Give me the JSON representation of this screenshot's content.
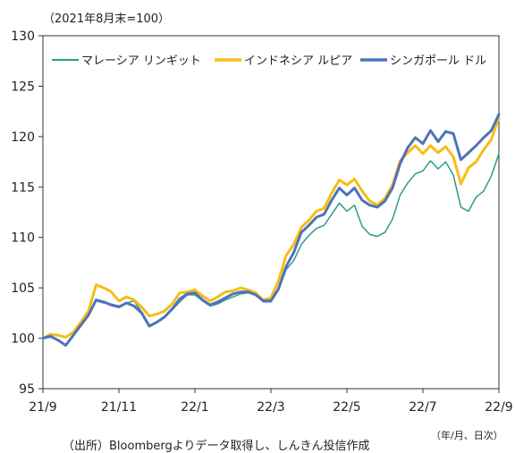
{
  "chart_data": {
    "type": "line",
    "unit_note": "（2021年8月末=100）",
    "x_unit": "（年/月、日次）",
    "source": "（出所）Bloombergよりデータ取得し、しんきん投信作成",
    "ylim": [
      95,
      130
    ],
    "y_ticks": [
      95,
      100,
      105,
      110,
      115,
      120,
      125,
      130
    ],
    "x_tick_labels": [
      "21/9",
      "21/11",
      "22/1",
      "22/3",
      "22/5",
      "22/7",
      "22/9"
    ],
    "x_range": [
      0,
      12
    ],
    "x_tick_positions": [
      0,
      2,
      4,
      6,
      8,
      10,
      12
    ],
    "legend_position": "top",
    "grid": false,
    "series": [
      {
        "name": "マレーシア リンギット",
        "color": "#2e9a8c",
        "width": 1.5,
        "points": [
          [
            0,
            100
          ],
          [
            0.2,
            100.1
          ],
          [
            0.4,
            99.8
          ],
          [
            0.6,
            99.3
          ],
          [
            0.8,
            100.4
          ],
          [
            1.0,
            101.2
          ],
          [
            1.2,
            102.2
          ],
          [
            1.4,
            103.7
          ],
          [
            1.6,
            103.5
          ],
          [
            1.8,
            103.4
          ],
          [
            2.0,
            103.2
          ],
          [
            2.2,
            103.5
          ],
          [
            2.4,
            103.7
          ],
          [
            2.6,
            102.6
          ],
          [
            2.8,
            101.3
          ],
          [
            3.0,
            101.6
          ],
          [
            3.2,
            102.2
          ],
          [
            3.4,
            102.8
          ],
          [
            3.6,
            103.6
          ],
          [
            3.8,
            104.3
          ],
          [
            4.0,
            104.3
          ],
          [
            4.2,
            103.7
          ],
          [
            4.4,
            103.2
          ],
          [
            4.6,
            103.4
          ],
          [
            4.8,
            103.8
          ],
          [
            5.0,
            104.1
          ],
          [
            5.2,
            104.4
          ],
          [
            5.4,
            104.5
          ],
          [
            5.6,
            104.3
          ],
          [
            5.8,
            103.6
          ],
          [
            6.0,
            103.6
          ],
          [
            6.2,
            104.8
          ],
          [
            6.4,
            106.8
          ],
          [
            6.6,
            107.7
          ],
          [
            6.8,
            109.3
          ],
          [
            7.0,
            110.2
          ],
          [
            7.2,
            110.9
          ],
          [
            7.4,
            111.2
          ],
          [
            7.6,
            112.3
          ],
          [
            7.8,
            113.4
          ],
          [
            8.0,
            112.6
          ],
          [
            8.2,
            113.2
          ],
          [
            8.4,
            111.1
          ],
          [
            8.6,
            110.3
          ],
          [
            8.8,
            110.1
          ],
          [
            9.0,
            110.5
          ],
          [
            9.2,
            111.8
          ],
          [
            9.4,
            114.2
          ],
          [
            9.6,
            115.4
          ],
          [
            9.8,
            116.3
          ],
          [
            10.0,
            116.6
          ],
          [
            10.2,
            117.6
          ],
          [
            10.4,
            116.8
          ],
          [
            10.6,
            117.5
          ],
          [
            10.8,
            116.2
          ],
          [
            11.0,
            113.0
          ],
          [
            11.2,
            112.6
          ],
          [
            11.4,
            114.0
          ],
          [
            11.6,
            114.6
          ],
          [
            11.8,
            116.1
          ],
          [
            12.0,
            118.3
          ]
        ]
      },
      {
        "name": "インドネシア ルピア",
        "color": "#f7bd14",
        "width": 3,
        "points": [
          [
            0,
            100
          ],
          [
            0.2,
            100.4
          ],
          [
            0.4,
            100.3
          ],
          [
            0.6,
            100.1
          ],
          [
            0.8,
            100.6
          ],
          [
            1.0,
            101.6
          ],
          [
            1.2,
            102.7
          ],
          [
            1.4,
            105.3
          ],
          [
            1.6,
            105
          ],
          [
            1.8,
            104.6
          ],
          [
            2.0,
            103.7
          ],
          [
            2.2,
            104.1
          ],
          [
            2.4,
            103.8
          ],
          [
            2.6,
            103.1
          ],
          [
            2.8,
            102.2
          ],
          [
            3.0,
            102.4
          ],
          [
            3.2,
            102.7
          ],
          [
            3.4,
            103.4
          ],
          [
            3.6,
            104.5
          ],
          [
            3.8,
            104.6
          ],
          [
            4.0,
            104.8
          ],
          [
            4.2,
            104.2
          ],
          [
            4.4,
            103.7
          ],
          [
            4.6,
            104.1
          ],
          [
            4.8,
            104.6
          ],
          [
            5.0,
            104.7
          ],
          [
            5.2,
            105.0
          ],
          [
            5.4,
            104.8
          ],
          [
            5.6,
            104.5
          ],
          [
            5.8,
            103.8
          ],
          [
            6.0,
            104.0
          ],
          [
            6.2,
            105.7
          ],
          [
            6.4,
            108.2
          ],
          [
            6.6,
            109.3
          ],
          [
            6.8,
            111.0
          ],
          [
            7.0,
            111.7
          ],
          [
            7.2,
            112.6
          ],
          [
            7.4,
            112.9
          ],
          [
            7.6,
            114.4
          ],
          [
            7.8,
            115.7
          ],
          [
            8.0,
            115.2
          ],
          [
            8.2,
            115.8
          ],
          [
            8.4,
            114.6
          ],
          [
            8.6,
            113.6
          ],
          [
            8.8,
            113.2
          ],
          [
            9.0,
            113.9
          ],
          [
            9.2,
            115.2
          ],
          [
            9.4,
            117.6
          ],
          [
            9.6,
            118.4
          ],
          [
            9.8,
            119.1
          ],
          [
            10.0,
            118.3
          ],
          [
            10.2,
            119.1
          ],
          [
            10.4,
            118.4
          ],
          [
            10.6,
            119.0
          ],
          [
            10.8,
            118.0
          ],
          [
            11.0,
            115.3
          ],
          [
            11.2,
            116.9
          ],
          [
            11.4,
            117.5
          ],
          [
            11.6,
            118.7
          ],
          [
            11.8,
            119.7
          ],
          [
            12.0,
            121.9
          ]
        ]
      },
      {
        "name": "シンガポール ドル",
        "color": "#4e73b8",
        "width": 3,
        "points": [
          [
            0,
            100
          ],
          [
            0.2,
            100.2
          ],
          [
            0.4,
            99.8
          ],
          [
            0.6,
            99.3
          ],
          [
            0.8,
            100.3
          ],
          [
            1.0,
            101.3
          ],
          [
            1.2,
            102.3
          ],
          [
            1.4,
            103.8
          ],
          [
            1.6,
            103.6
          ],
          [
            1.8,
            103.3
          ],
          [
            2.0,
            103.1
          ],
          [
            2.2,
            103.5
          ],
          [
            2.4,
            103.2
          ],
          [
            2.6,
            102.5
          ],
          [
            2.8,
            101.2
          ],
          [
            3.0,
            101.6
          ],
          [
            3.2,
            102.1
          ],
          [
            3.4,
            102.9
          ],
          [
            3.6,
            103.9
          ],
          [
            3.8,
            104.4
          ],
          [
            4.0,
            104.5
          ],
          [
            4.2,
            103.8
          ],
          [
            4.4,
            103.3
          ],
          [
            4.6,
            103.6
          ],
          [
            4.8,
            104.0
          ],
          [
            5.0,
            104.4
          ],
          [
            5.2,
            104.6
          ],
          [
            5.4,
            104.6
          ],
          [
            5.6,
            104.3
          ],
          [
            5.8,
            103.7
          ],
          [
            6.0,
            103.7
          ],
          [
            6.2,
            104.9
          ],
          [
            6.4,
            107.1
          ],
          [
            6.6,
            108.5
          ],
          [
            6.8,
            110.5
          ],
          [
            7.0,
            111.2
          ],
          [
            7.2,
            112.0
          ],
          [
            7.4,
            112.3
          ],
          [
            7.6,
            113.7
          ],
          [
            7.8,
            114.9
          ],
          [
            8.0,
            114.2
          ],
          [
            8.2,
            114.9
          ],
          [
            8.4,
            113.7
          ],
          [
            8.6,
            113.2
          ],
          [
            8.8,
            113.0
          ],
          [
            9.0,
            113.6
          ],
          [
            9.2,
            114.9
          ],
          [
            9.4,
            117.3
          ],
          [
            9.6,
            118.9
          ],
          [
            9.8,
            119.9
          ],
          [
            10.0,
            119.3
          ],
          [
            10.2,
            120.6
          ],
          [
            10.4,
            119.5
          ],
          [
            10.6,
            120.5
          ],
          [
            10.8,
            120.3
          ],
          [
            11.0,
            117.7
          ],
          [
            11.2,
            118.4
          ],
          [
            11.4,
            119.1
          ],
          [
            11.6,
            119.9
          ],
          [
            11.8,
            120.6
          ],
          [
            12.0,
            122.2
          ]
        ]
      }
    ]
  }
}
